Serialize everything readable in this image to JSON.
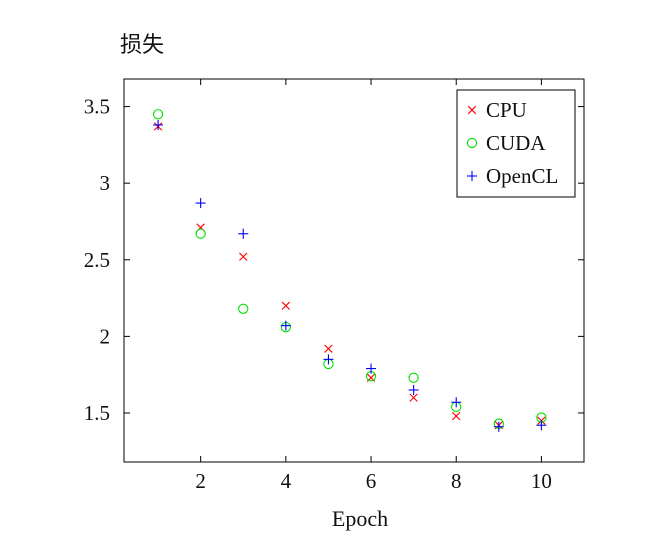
{
  "chart_data": {
    "type": "scatter",
    "title": "",
    "xlabel": "Epoch",
    "ylabel": "损失",
    "xlim": [
      0.2,
      11
    ],
    "ylim": [
      1.18,
      3.68
    ],
    "xticks": [
      2,
      4,
      6,
      8,
      10
    ],
    "yticks": [
      1.5,
      2,
      2.5,
      3,
      3.5
    ],
    "xtick_labels": [
      "2",
      "4",
      "6",
      "8",
      "10"
    ],
    "ytick_labels": [
      "1.5",
      "2",
      "2.5",
      "3",
      "3.5"
    ],
    "grid": false,
    "legend_position": "top-right",
    "series": [
      {
        "name": "CPU",
        "marker": "x",
        "color": "#ff0000",
        "x": [
          1,
          2,
          3,
          4,
          5,
          6,
          7,
          8,
          9,
          10
        ],
        "values": [
          3.37,
          2.71,
          2.52,
          2.2,
          1.92,
          1.73,
          1.6,
          1.48,
          1.42,
          1.45
        ]
      },
      {
        "name": "CUDA",
        "marker": "circle",
        "color": "#00e000",
        "x": [
          1,
          2,
          3,
          4,
          5,
          6,
          7,
          8,
          9,
          10
        ],
        "values": [
          3.45,
          2.67,
          2.18,
          2.06,
          1.82,
          1.74,
          1.73,
          1.54,
          1.43,
          1.47
        ]
      },
      {
        "name": "OpenCL",
        "marker": "plus",
        "color": "#0000ff",
        "x": [
          1,
          2,
          3,
          4,
          5,
          6,
          7,
          8,
          9,
          10
        ],
        "values": [
          3.38,
          2.87,
          2.67,
          2.07,
          1.85,
          1.79,
          1.65,
          1.57,
          1.41,
          1.42
        ]
      }
    ]
  }
}
